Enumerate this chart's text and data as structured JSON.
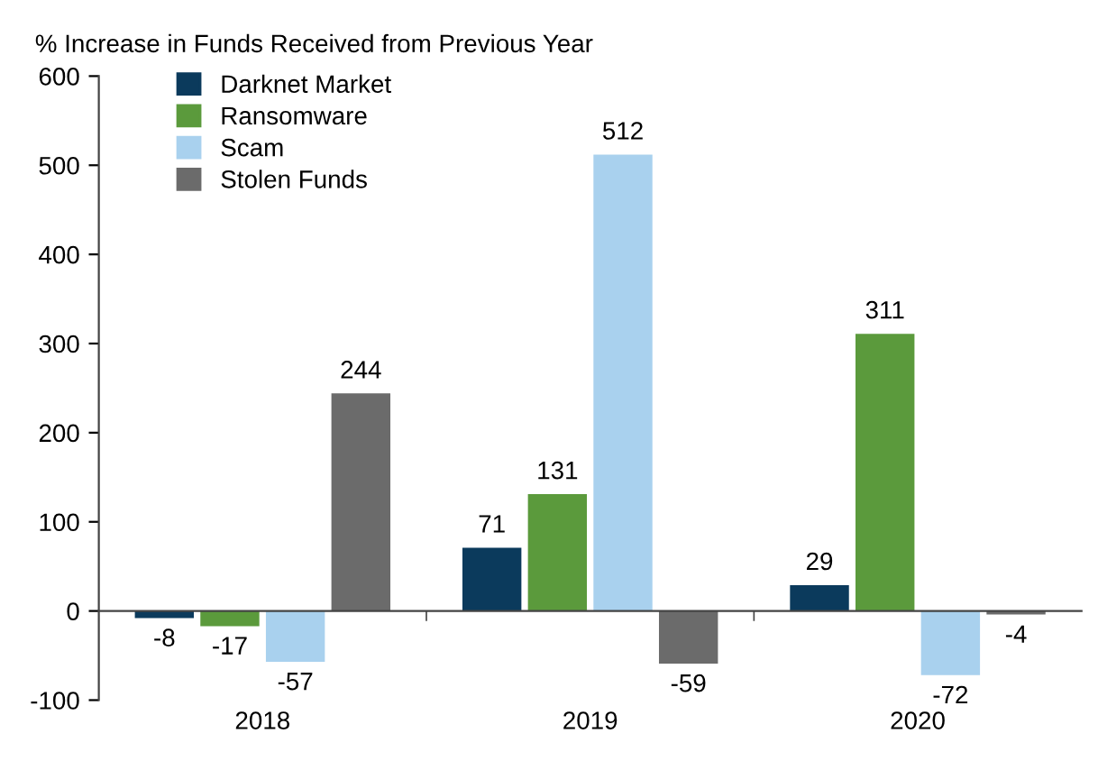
{
  "chart_data": {
    "type": "bar",
    "ylabel": "% Increase in Funds Received from Previous Year",
    "categories": [
      "2018",
      "2019",
      "2020"
    ],
    "series": [
      {
        "name": "Darknet Market",
        "color": "#0b3a5c",
        "values": [
          -8,
          71,
          29
        ]
      },
      {
        "name": "Ransomware",
        "color": "#5b9a3c",
        "values": [
          -17,
          131,
          311
        ]
      },
      {
        "name": "Scam",
        "color": "#a9d1ee",
        "values": [
          -57,
          512,
          -72
        ]
      },
      {
        "name": "Stolen Funds",
        "color": "#6b6b6b",
        "values": [
          244,
          -59,
          -4
        ]
      }
    ],
    "ylim": [
      -100,
      600
    ],
    "yticks": [
      -100,
      0,
      100,
      200,
      300,
      400,
      500,
      600
    ],
    "data_labels": true,
    "legend": "top left"
  }
}
